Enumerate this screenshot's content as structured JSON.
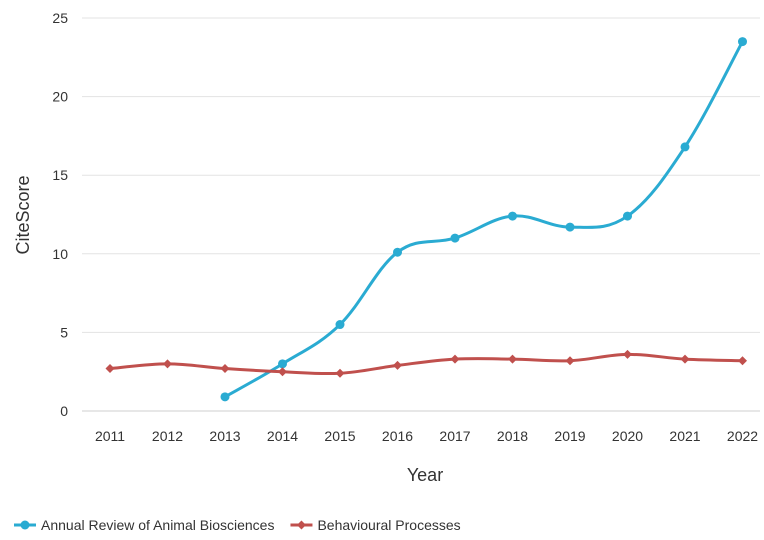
{
  "chart_data": {
    "type": "line",
    "xlabel": "Year",
    "ylabel": "CiteScore",
    "ylim": [
      0,
      25
    ],
    "yticks": [
      0,
      5,
      10,
      15,
      20,
      25
    ],
    "grid": "horizontal",
    "legend_position": "bottom-left",
    "categories": [
      "2011",
      "2012",
      "2013",
      "2014",
      "2015",
      "2016",
      "2017",
      "2018",
      "2019",
      "2020",
      "2021",
      "2022"
    ],
    "series": [
      {
        "name": "Annual Review of Animal Biosciences",
        "color": "#2aabd2",
        "marker": "circle",
        "values": [
          null,
          null,
          0.9,
          3.0,
          5.5,
          10.1,
          11.0,
          12.4,
          11.7,
          12.4,
          16.8,
          23.5
        ]
      },
      {
        "name": "Behavioural Processes",
        "color": "#c0504d",
        "marker": "diamond",
        "values": [
          2.7,
          3.0,
          2.7,
          2.5,
          2.4,
          2.9,
          3.3,
          3.3,
          3.2,
          3.6,
          3.3,
          3.2
        ]
      }
    ]
  }
}
